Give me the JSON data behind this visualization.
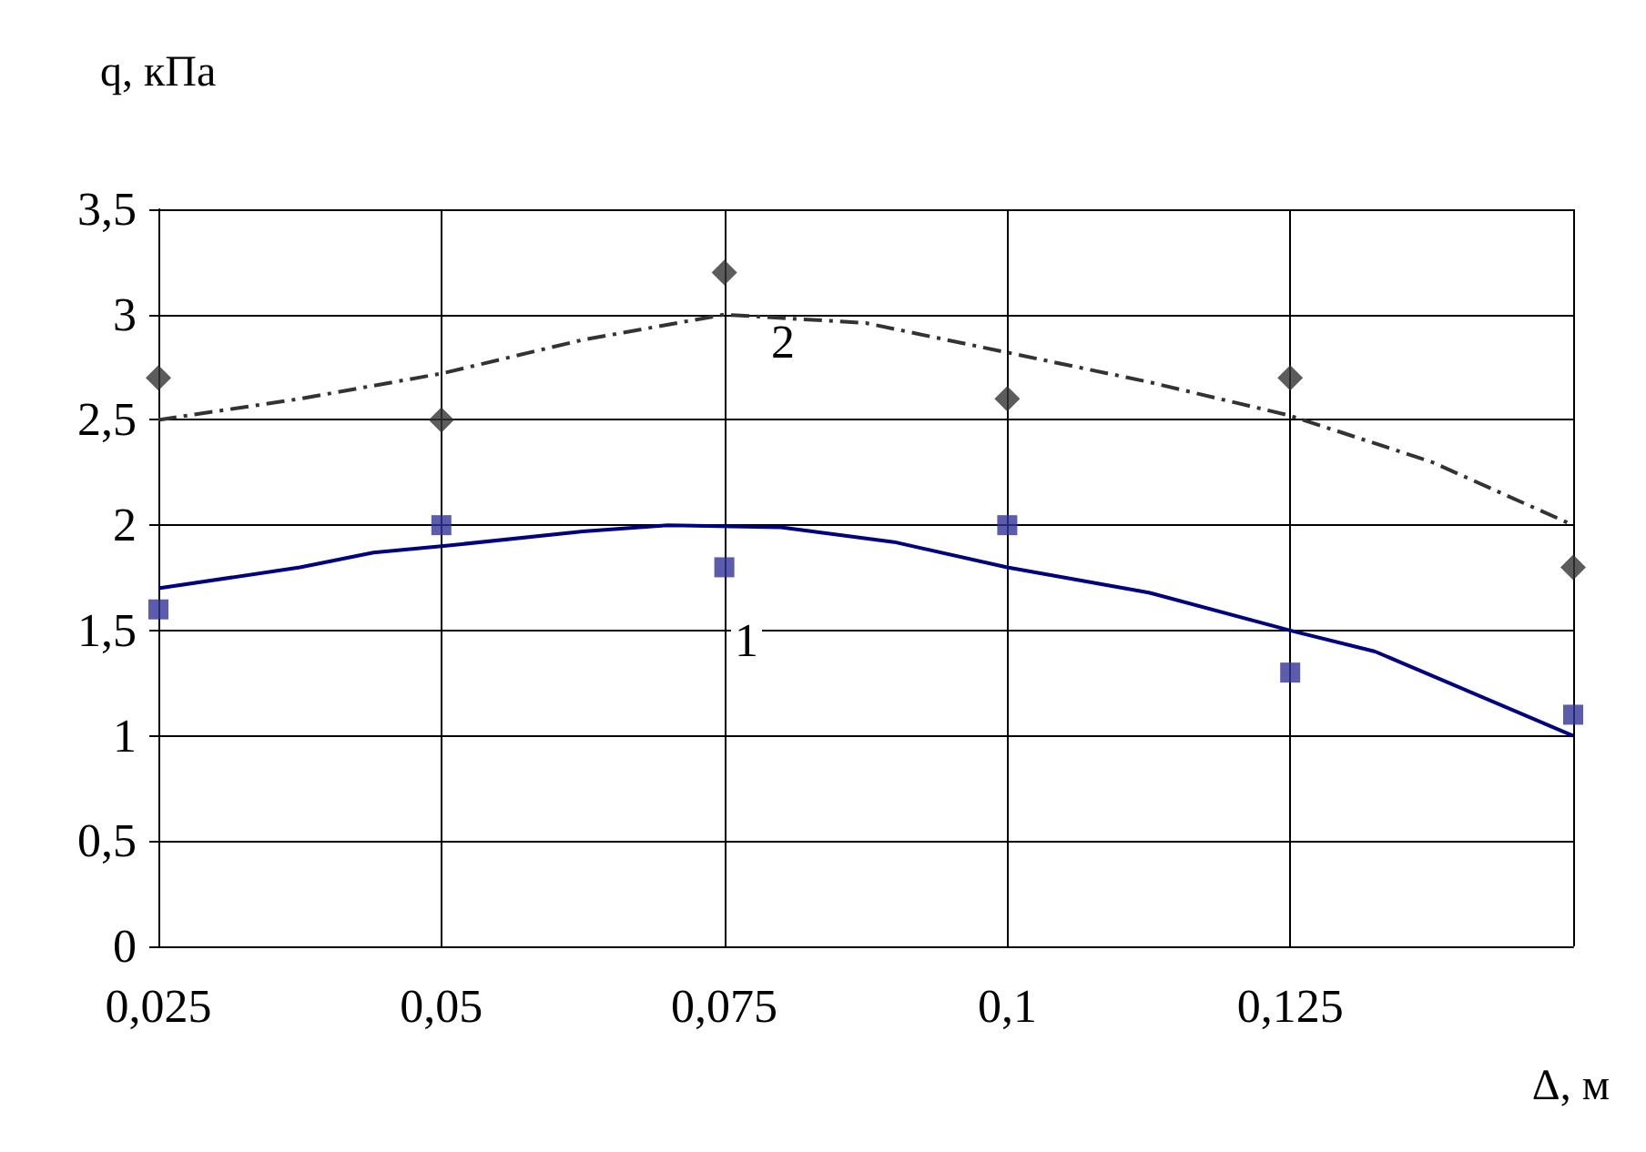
{
  "chart_data": {
    "type": "scatter",
    "xlabel": "Δ, м",
    "ylabel": "q, кПа",
    "xlim": [
      0.025,
      0.15
    ],
    "xticks": [
      {
        "value": 0.025,
        "label": "0,025"
      },
      {
        "value": 0.05,
        "label": "0,05"
      },
      {
        "value": 0.075,
        "label": "0,075"
      },
      {
        "value": 0.1,
        "label": "0,1"
      },
      {
        "value": 0.125,
        "label": "0,125"
      },
      {
        "value": 0.15,
        "label": null
      }
    ],
    "ylim": [
      0,
      3.5
    ],
    "yticks": [
      0,
      {
        "value": 0.5,
        "label": "0,5"
      },
      1,
      {
        "value": 1.5,
        "label": "1,5"
      },
      2,
      {
        "value": 2.5,
        "label": "2,5"
      },
      3,
      {
        "value": 3.5,
        "label": "3,5"
      }
    ],
    "grid": true,
    "series": [
      {
        "marker": "square",
        "color": "#333399",
        "x": [
          0.025,
          0.05,
          0.075,
          0.1,
          0.125,
          0.15
        ],
        "values": [
          1.6,
          2.0,
          1.8,
          2.0,
          1.3,
          1.1
        ]
      },
      {
        "marker": "diamond",
        "color": "#333333",
        "x": [
          0.025,
          0.05,
          0.075,
          0.1,
          0.125,
          0.15
        ],
        "values": [
          2.7,
          2.5,
          3.2,
          2.6,
          2.7,
          1.8
        ]
      },
      {
        "type": "line",
        "marker": "none",
        "line_style": "solid",
        "color": "#000080",
        "x": [
          0.025,
          0.0375,
          0.044,
          0.05,
          0.0625,
          0.07,
          0.08,
          0.09,
          0.1,
          0.1125,
          0.125,
          0.1325,
          0.15
        ],
        "values": [
          1.7,
          1.8,
          1.87,
          1.9,
          1.97,
          2.0,
          1.99,
          1.92,
          1.8,
          1.68,
          1.5,
          1.4,
          1.0
        ]
      },
      {
        "type": "line",
        "marker": "none",
        "line_style": "dashed",
        "color": "#333333",
        "x": [
          0.025,
          0.0375,
          0.05,
          0.0625,
          0.075,
          0.0875,
          0.1,
          0.1125,
          0.125,
          0.1375,
          0.15
        ],
        "values": [
          2.5,
          2.6,
          2.72,
          2.88,
          3.0,
          2.96,
          2.82,
          2.68,
          2.52,
          2.3,
          2.0
        ]
      }
    ],
    "annotations": [
      "2",
      "1"
    ]
  }
}
